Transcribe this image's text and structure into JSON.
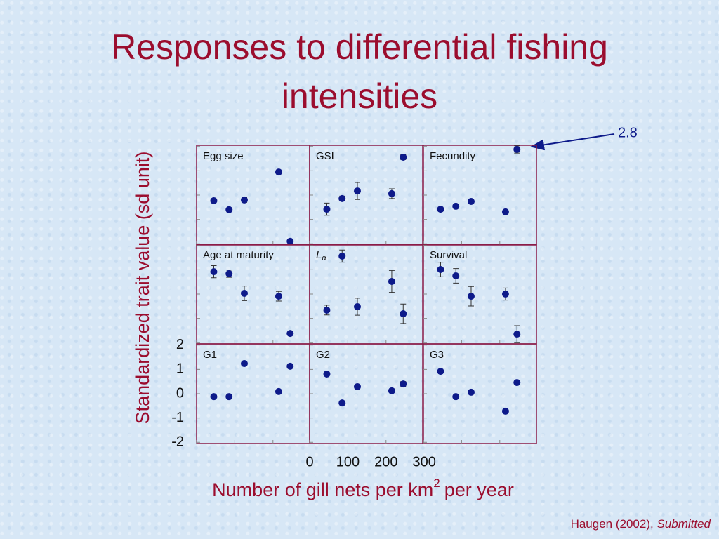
{
  "chart_data": {
    "type": "scatter",
    "title": "Responses to differential fishing intensities",
    "ylabel": "Standardized trait value (sd unit)",
    "xlabel": "Number of gill nets per km",
    "xlabel_sup": "2",
    "xlabel_end": "per year",
    "x": [
      45,
      85,
      125,
      215,
      245
    ],
    "xlim": [
      0,
      296
    ],
    "xticks": [
      0,
      100,
      200,
      300
    ],
    "ylim": [
      -2.05,
      2.05
    ],
    "yticks": [
      2,
      1,
      0,
      -1,
      -2
    ],
    "color": "#0d1a8a",
    "panels": [
      {
        "title": "Egg size",
        "values": [
          -0.23,
          -0.6,
          -0.2,
          0.95,
          -1.9
        ],
        "errors": [
          0.05,
          0.05,
          0.1,
          0.05,
          0.05
        ]
      },
      {
        "title": "GSI",
        "values": [
          -0.58,
          -0.14,
          0.17,
          0.06,
          1.56
        ],
        "errors": [
          0.25,
          0.1,
          0.35,
          0.2,
          0.1
        ]
      },
      {
        "title": "Fecundity",
        "values": [
          -0.58,
          -0.46,
          -0.26,
          -0.69,
          1.88
        ],
        "errors": [
          0.08,
          0.08,
          0.1,
          0.05,
          0.15
        ]
      },
      {
        "title": "Age at maturity",
        "values": [
          0.92,
          0.84,
          0.03,
          -0.09,
          -1.62
        ],
        "errors": [
          0.25,
          0.15,
          0.3,
          0.2,
          0.05
        ]
      },
      {
        "title": "L",
        "subscript": "α",
        "values": [
          -0.66,
          1.56,
          -0.52,
          0.52,
          -0.81
        ],
        "errors": [
          0.2,
          0.25,
          0.35,
          0.45,
          0.4
        ]
      },
      {
        "title": "Survival",
        "values": [
          1.01,
          0.75,
          -0.09,
          0,
          -1.65
        ],
        "errors": [
          0.3,
          0.3,
          0.4,
          0.25,
          0.35
        ]
      },
      {
        "title": "G1",
        "values": [
          -0.12,
          -0.12,
          1.24,
          0.09,
          1.13
        ],
        "errors": [
          0.05,
          0.05,
          0.1,
          0.05,
          0.05
        ]
      },
      {
        "title": "G2",
        "values": [
          0.81,
          -0.38,
          0.29,
          0.12,
          0.4
        ],
        "errors": [
          0.05,
          0.05,
          0.08,
          0.05,
          0.1
        ]
      },
      {
        "title": "G3",
        "values": [
          0.92,
          -0.12,
          0.06,
          -0.72,
          0.46
        ],
        "errors": [
          0.05,
          0.05,
          0.05,
          0.05,
          0.1
        ]
      }
    ],
    "annotation": "2.8",
    "source": "Haugen (2002),",
    "source_status": "Submitted"
  }
}
